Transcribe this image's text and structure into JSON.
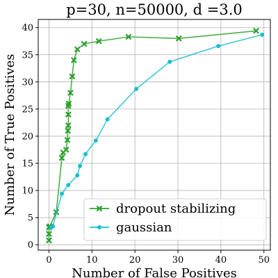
{
  "chart_data": {
    "type": "line",
    "title": "p=30, n=50000, d =3.0",
    "xlabel": "Number of False Positives",
    "ylabel": "Number of True Positives",
    "xlim": [
      -2.5,
      51.5
    ],
    "ylim": [
      -1,
      41.5
    ],
    "xticks": [
      0,
      10,
      20,
      30,
      40,
      50
    ],
    "yticks": [
      0,
      5,
      10,
      15,
      20,
      25,
      30,
      35,
      40
    ],
    "grid": true,
    "legend_position": "bottom-right",
    "series": [
      {
        "name": "dropout stabilizing",
        "color": "#2ca02c",
        "marker": "x",
        "x": [
          0,
          0,
          0,
          0.2,
          1.7,
          3.0,
          3.3,
          4.0,
          4.3,
          4.4,
          4.5,
          4.5,
          4.5,
          4.6,
          5.0,
          5.4,
          5.8,
          6.6,
          8.2,
          11.6,
          18.5,
          30.2,
          48.2
        ],
        "y": [
          0.8,
          2.0,
          3.2,
          3.4,
          6.0,
          16.0,
          17.0,
          17.5,
          19.3,
          21.0,
          22.0,
          24.0,
          25.6,
          26.0,
          28.0,
          31.0,
          34.0,
          36.0,
          37.0,
          37.5,
          38.3,
          38.0,
          39.4
        ]
      },
      {
        "name": "gaussian",
        "color": "#17becf",
        "marker": "o",
        "x": [
          0.5,
          0.9,
          3.0,
          4.5,
          6.6,
          7.2,
          8.5,
          10.9,
          13.6,
          20.3,
          28.1,
          39.4,
          49.6
        ],
        "y": [
          3.2,
          3.4,
          9.4,
          11.0,
          12.8,
          14.5,
          16.7,
          19.2,
          23.1,
          28.7,
          33.7,
          36.6,
          38.7
        ]
      }
    ]
  }
}
